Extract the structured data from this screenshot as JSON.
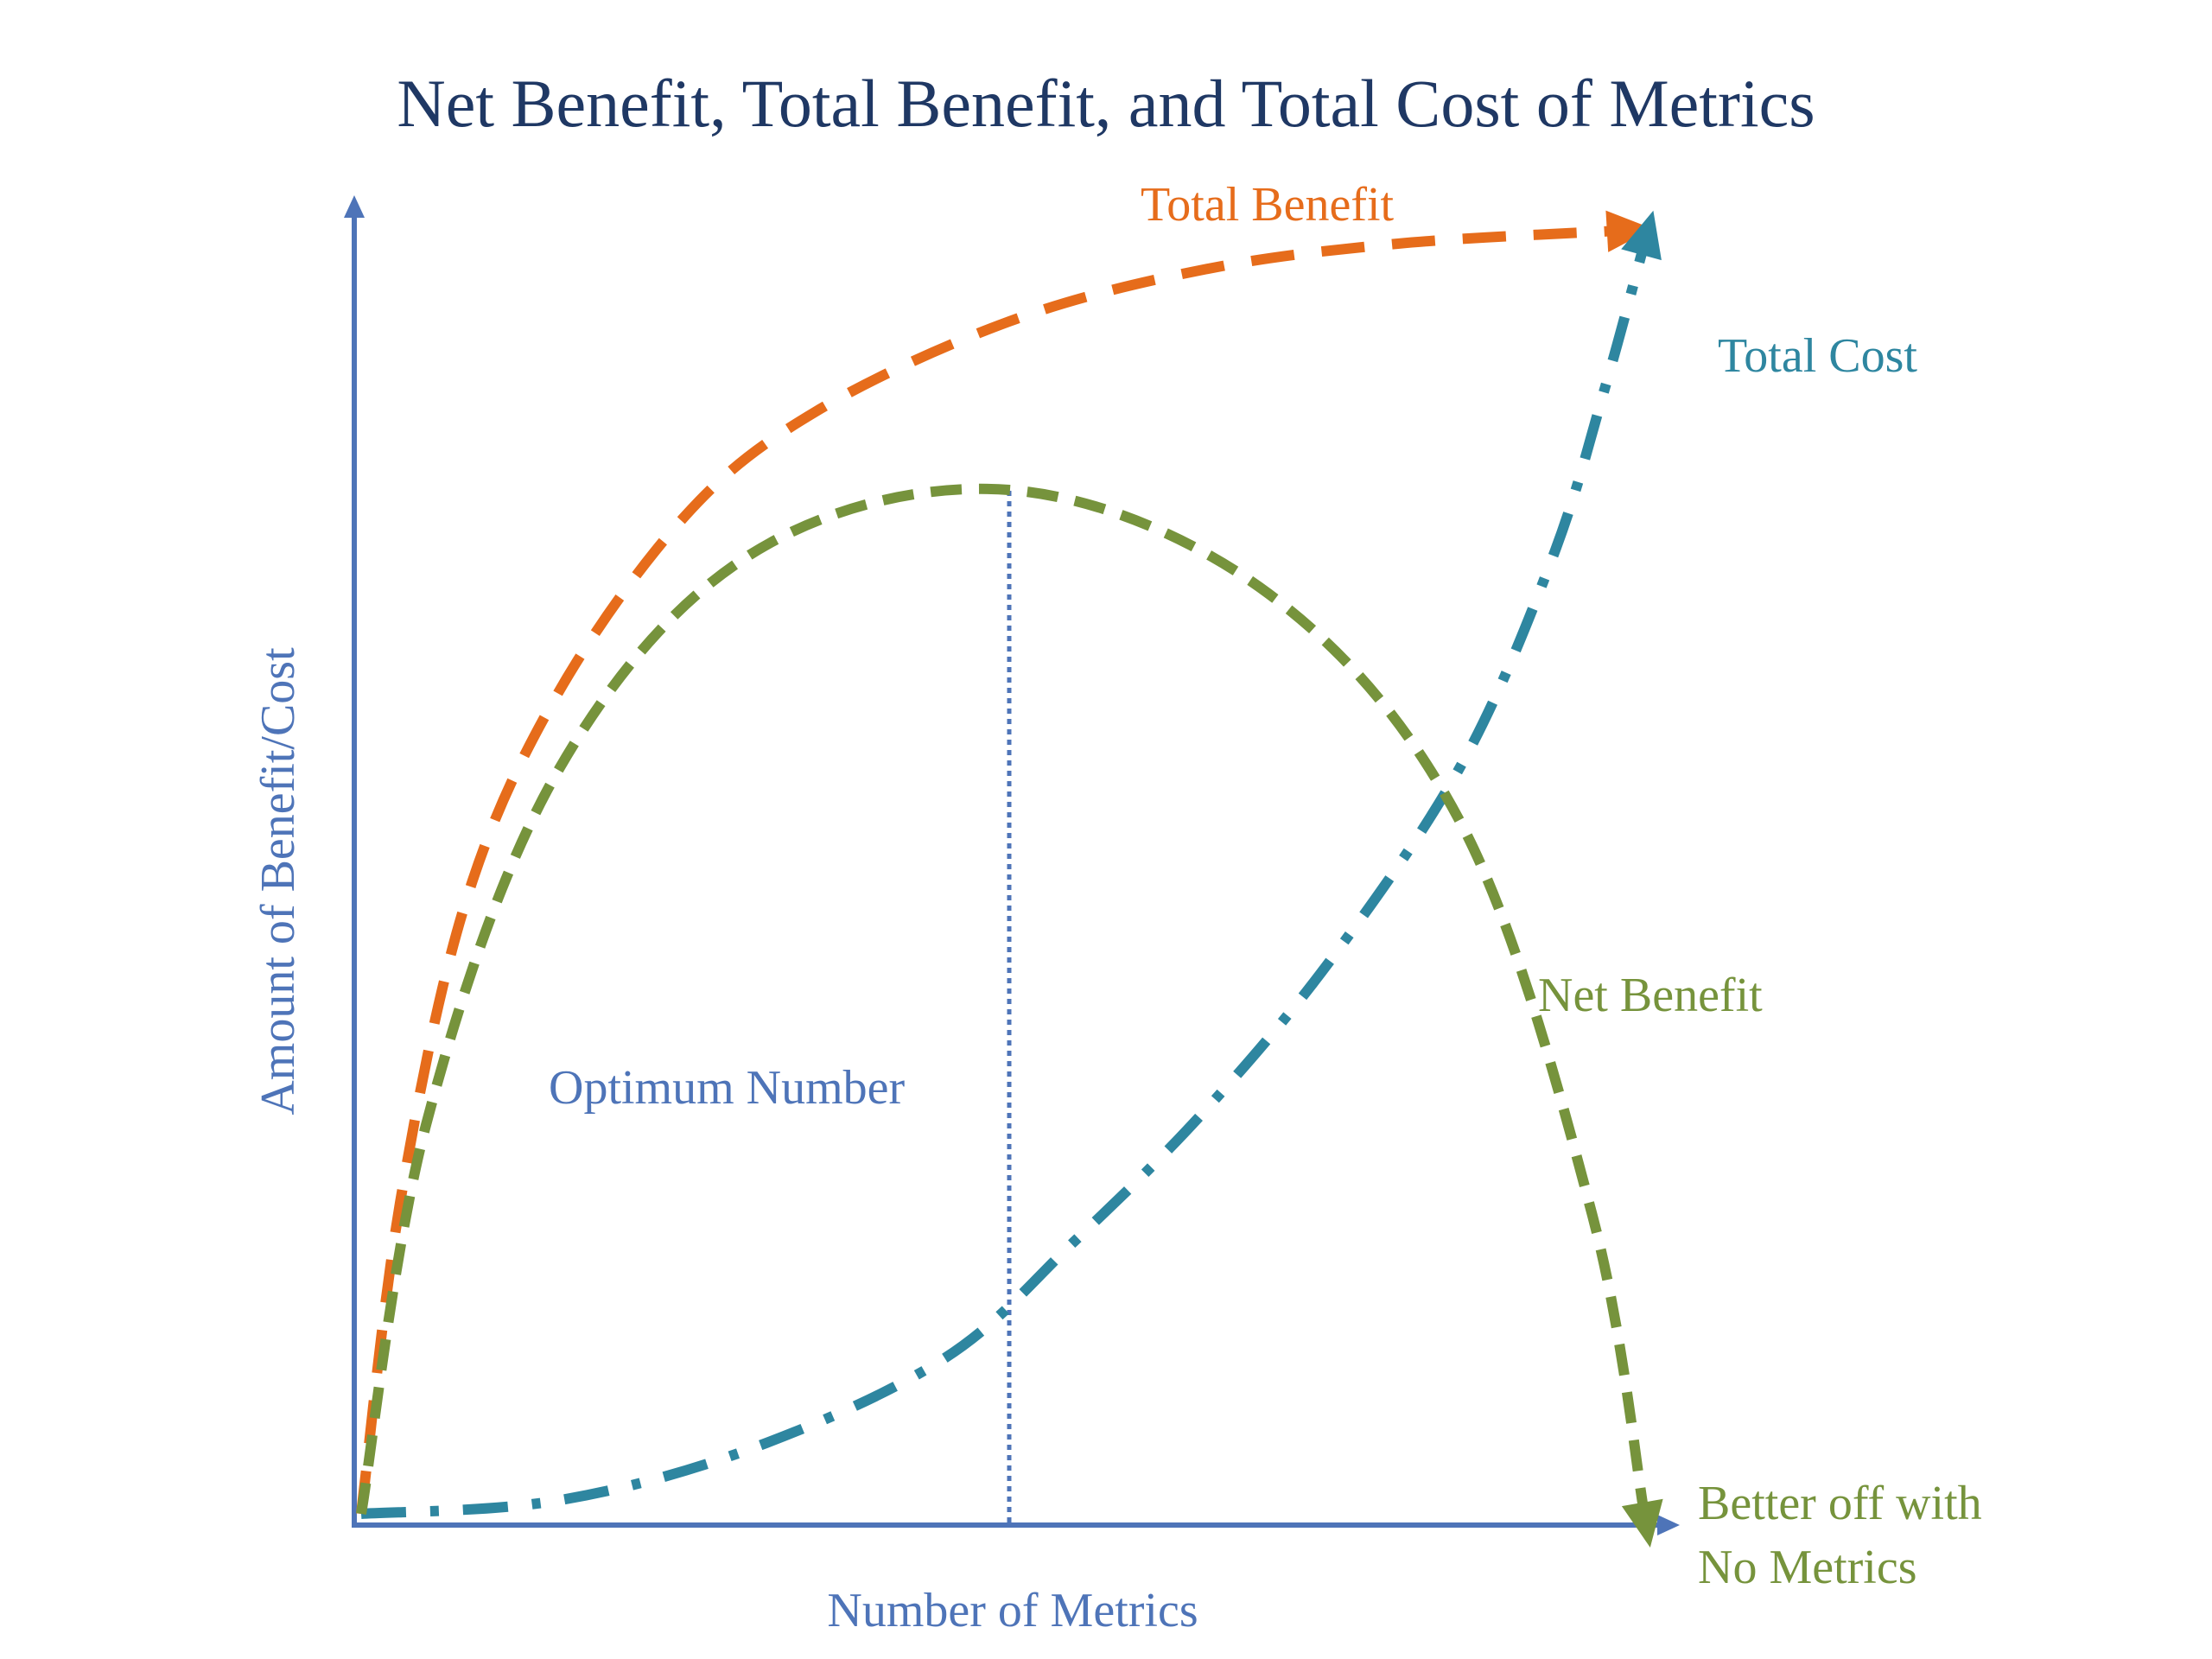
{
  "title": "Net Benefit, Total Benefit, and Total Cost of Metrics",
  "colors": {
    "title": "#1f3864",
    "axis": "#4e74b8",
    "total_benefit": "#e66c1b",
    "total_cost": "#2e86a0",
    "net_benefit": "#76933c",
    "optimum_line": "#4e74b8"
  },
  "chart_data": {
    "type": "line",
    "title": "Net Benefit, Total Benefit, and Total Cost of Metrics",
    "xlabel": "Number of Metrics",
    "ylabel": "Amount of Benefit/Cost",
    "xlim": [
      0,
      100
    ],
    "ylim": [
      0,
      100
    ],
    "grid": false,
    "series": [
      {
        "name": "Total Benefit",
        "label": "Total Benefit",
        "style": "dashed",
        "x": [
          0,
          3,
          8,
          15,
          25,
          35,
          50,
          65,
          80,
          97
        ],
        "y": [
          0,
          24,
          47,
          63,
          77,
          85,
          92,
          96,
          98,
          99
        ]
      },
      {
        "name": "Total Cost",
        "label": "Total Cost",
        "style": "dash-dot",
        "x": [
          0,
          15,
          30,
          45,
          55,
          65,
          75,
          85,
          92,
          96,
          99
        ],
        "y": [
          0,
          1,
          5,
          12,
          21,
          31,
          43,
          58,
          74,
          87,
          98
        ]
      },
      {
        "name": "Net Benefit",
        "label": "Net Benefit",
        "style": "dashed",
        "x": [
          0,
          5,
          15,
          30,
          50,
          70,
          85,
          95,
          99
        ],
        "y": [
          0,
          30,
          57,
          74,
          79,
          71,
          53,
          23,
          0
        ]
      }
    ],
    "annotations": [
      {
        "name": "optimum",
        "text": "Optimum Number",
        "x": 50
      },
      {
        "name": "no-metrics",
        "text_line1": "Better off with",
        "text_line2": "No Metrics"
      }
    ]
  }
}
